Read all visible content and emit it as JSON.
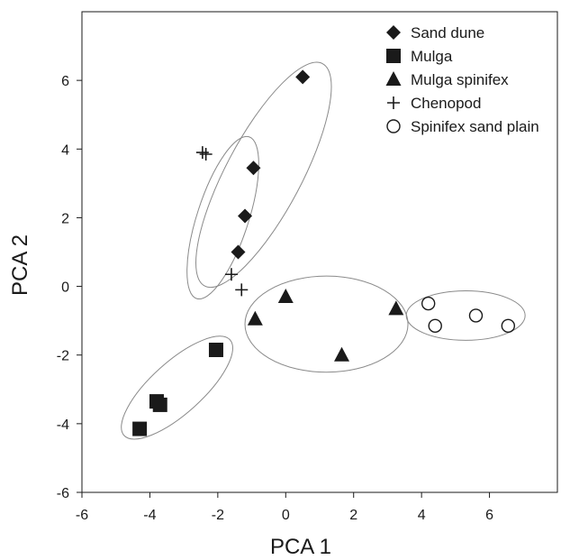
{
  "chart_data": {
    "type": "scatter",
    "title": "",
    "xlabel": "PCA 1",
    "ylabel": "PCA 2",
    "xlim": [
      -6,
      8
    ],
    "ylim": [
      -6,
      8
    ],
    "xticks": [
      -6,
      -4,
      -2,
      0,
      2,
      4,
      6
    ],
    "yticks": [
      -6,
      -4,
      -2,
      0,
      2,
      4,
      6
    ],
    "grid": false,
    "legend_position": "top-right",
    "series": [
      {
        "name": "Sand dune",
        "marker": "diamond",
        "color": "#1a1a1a",
        "points": [
          [
            0.5,
            6.1
          ],
          [
            -0.95,
            3.45
          ],
          [
            -1.2,
            2.05
          ],
          [
            -1.4,
            1.0
          ]
        ]
      },
      {
        "name": "Mulga",
        "marker": "square",
        "color": "#1a1a1a",
        "points": [
          [
            -2.05,
            -1.85
          ],
          [
            -3.8,
            -3.35
          ],
          [
            -3.7,
            -3.45
          ],
          [
            -4.3,
            -4.15
          ]
        ]
      },
      {
        "name": "Mulga spinifex",
        "marker": "triangle",
        "color": "#1a1a1a",
        "points": [
          [
            0.0,
            -0.3
          ],
          [
            -0.9,
            -0.95
          ],
          [
            3.25,
            -0.65
          ],
          [
            1.65,
            -2.0
          ]
        ]
      },
      {
        "name": "Chenopod",
        "marker": "plus",
        "color": "#1a1a1a",
        "points": [
          [
            -2.45,
            3.9
          ],
          [
            -2.35,
            3.85
          ],
          [
            -1.6,
            0.35
          ],
          [
            -1.3,
            -0.1
          ]
        ]
      },
      {
        "name": "Spinifex sand plain",
        "marker": "circle",
        "color": "#1a1a1a",
        "points": [
          [
            4.2,
            -0.5
          ],
          [
            4.4,
            -1.15
          ],
          [
            5.6,
            -0.85
          ],
          [
            6.55,
            -1.15
          ]
        ]
      }
    ],
    "ellipses": [
      {
        "group": "Sand dune",
        "cx": -0.65,
        "cy": 3.25,
        "rx": 3.7,
        "ry": 1.1,
        "angle_deg": 62
      },
      {
        "group": "Chenopod",
        "cx": -1.85,
        "cy": 2.0,
        "rx": 2.5,
        "ry": 0.75,
        "angle_deg": 72
      },
      {
        "group": "Mulga",
        "cx": -3.2,
        "cy": -2.95,
        "rx": 2.1,
        "ry": 0.75,
        "angle_deg": 42
      },
      {
        "group": "Mulga spinifex",
        "cx": 1.2,
        "cy": -1.1,
        "rx": 2.4,
        "ry": 1.4,
        "angle_deg": 0
      },
      {
        "group": "Spinifex sand plain",
        "cx": 5.3,
        "cy": -0.85,
        "rx": 1.75,
        "ry": 0.72,
        "angle_deg": 0
      }
    ]
  }
}
